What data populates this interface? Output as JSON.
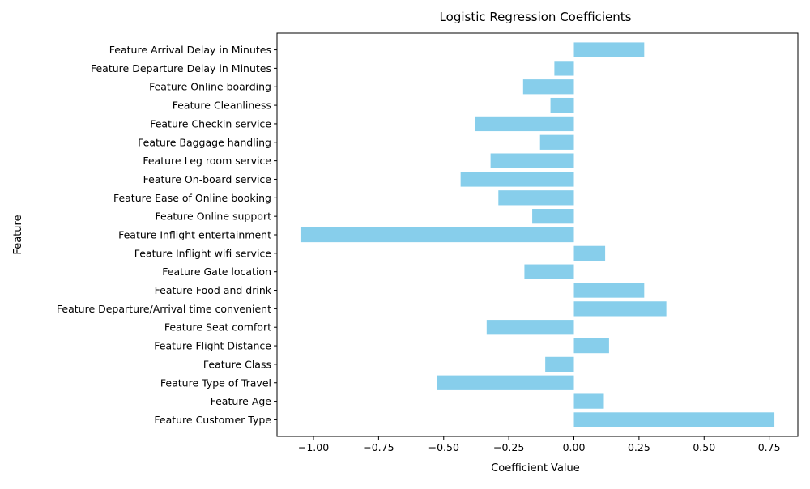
{
  "chart_data": {
    "type": "bar",
    "orientation": "horizontal",
    "title": "Logistic Regression Coefficients",
    "xlabel": "Coefficient Value",
    "ylabel": "Feature",
    "bar_color": "#87ceeb",
    "xlim": [
      -1.14,
      0.86
    ],
    "x_ticks": [
      -1.0,
      -0.75,
      -0.5,
      -0.25,
      0.0,
      0.25,
      0.5,
      0.75
    ],
    "x_tick_labels": [
      "−1.00",
      "−0.75",
      "−0.50",
      "−0.25",
      "0.00",
      "0.25",
      "0.50",
      "0.75"
    ],
    "grid": false,
    "legend": "none",
    "categories": [
      "Feature Customer Type",
      "Feature Age",
      "Feature Type of Travel",
      "Feature Class",
      "Feature Flight Distance",
      "Feature Seat comfort",
      "Feature Departure/Arrival time convenient",
      "Feature Food and drink",
      "Feature Gate location",
      "Feature Inflight wifi service",
      "Feature Inflight entertainment",
      "Feature Online support",
      "Feature Ease of Online booking",
      "Feature On-board service",
      "Feature Leg room service",
      "Feature Baggage handling",
      "Feature Checkin service",
      "Feature Cleanliness",
      "Feature Online boarding",
      "Feature Departure Delay in Minutes",
      "Feature Arrival Delay in Minutes"
    ],
    "values": [
      0.77,
      0.115,
      -0.525,
      -0.11,
      0.135,
      -0.335,
      0.355,
      0.27,
      -0.19,
      0.12,
      -1.05,
      -0.16,
      -0.29,
      -0.435,
      -0.32,
      -0.13,
      -0.38,
      -0.09,
      -0.195,
      -0.075,
      0.27
    ]
  }
}
